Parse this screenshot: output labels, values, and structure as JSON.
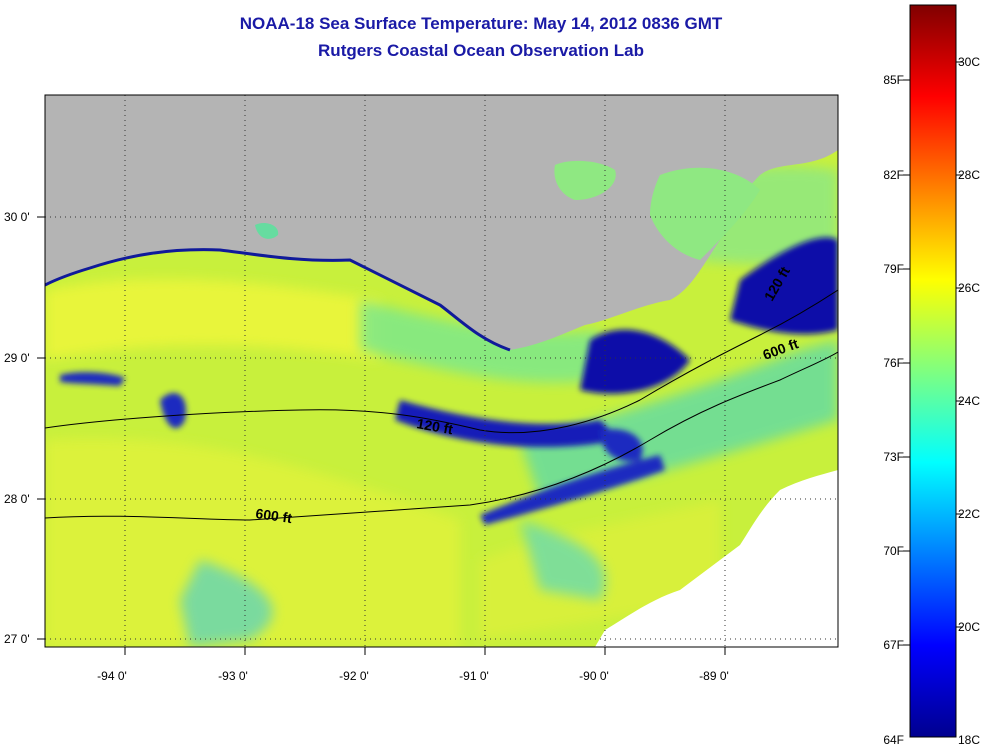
{
  "title": "NOAA-18 Sea Surface Temperature:  May 14, 2012 0836 GMT",
  "subtitle": "Rutgers Coastal Ocean Observation Lab",
  "axes": {
    "lon_ticks": [
      "-94 0'",
      "-93 0'",
      "-92 0'",
      "-91 0'",
      "-90 0'",
      "-89 0'"
    ],
    "lat_ticks": [
      "30 0'",
      "29 0'",
      "28 0'",
      "27 0'"
    ]
  },
  "contours": {
    "shelf_120": "120 ft",
    "shelf_600": "600 ft"
  },
  "colorbar": {
    "fahrenheit": [
      "85F",
      "82F",
      "79F",
      "76F",
      "73F",
      "70F",
      "67F",
      "64F"
    ],
    "celsius": [
      "30C",
      "28C",
      "26C",
      "24C",
      "22C",
      "20C",
      "18C"
    ]
  },
  "colors": {
    "land": "#b4b4b4",
    "cold": "#00008f",
    "warm": "#ffff00",
    "title": "#1a1aa6"
  }
}
